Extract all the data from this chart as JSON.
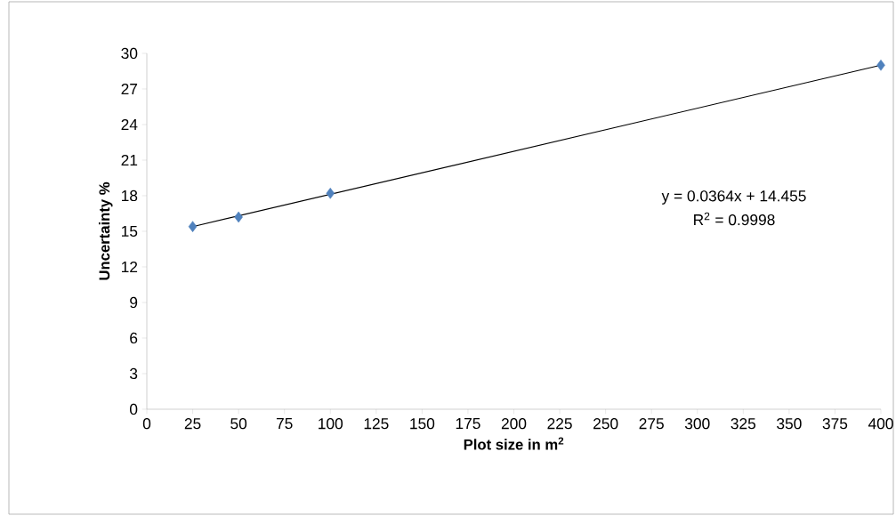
{
  "chart_data": {
    "type": "scatter",
    "xlabel": "Plot size in m$^{2}$",
    "ylabel": "Uncertainty %",
    "annotations": [
      "y = 0.0364x + 14.455",
      "R$^{2}$ = 0.9998"
    ],
    "series": [
      {
        "color": "#4f81bd",
        "marker": "diamond",
        "x": [
          25,
          50,
          100,
          400
        ],
        "values": [
          15.4,
          16.2,
          18.2,
          29.0
        ]
      },
      {
        "type": "line",
        "color": "#000000",
        "marker": "none",
        "x": [
          25,
          400
        ],
        "values": [
          15.4,
          29.0
        ]
      }
    ],
    "xlim": [
      0,
      400
    ],
    "xticks": [
      0,
      25,
      50,
      75,
      100,
      125,
      150,
      175,
      200,
      225,
      250,
      275,
      300,
      325,
      350,
      375,
      400
    ],
    "ylim": [
      0,
      30
    ],
    "yticks": [
      0,
      3,
      6,
      9,
      12,
      15,
      18,
      21,
      24,
      27,
      30
    ]
  }
}
